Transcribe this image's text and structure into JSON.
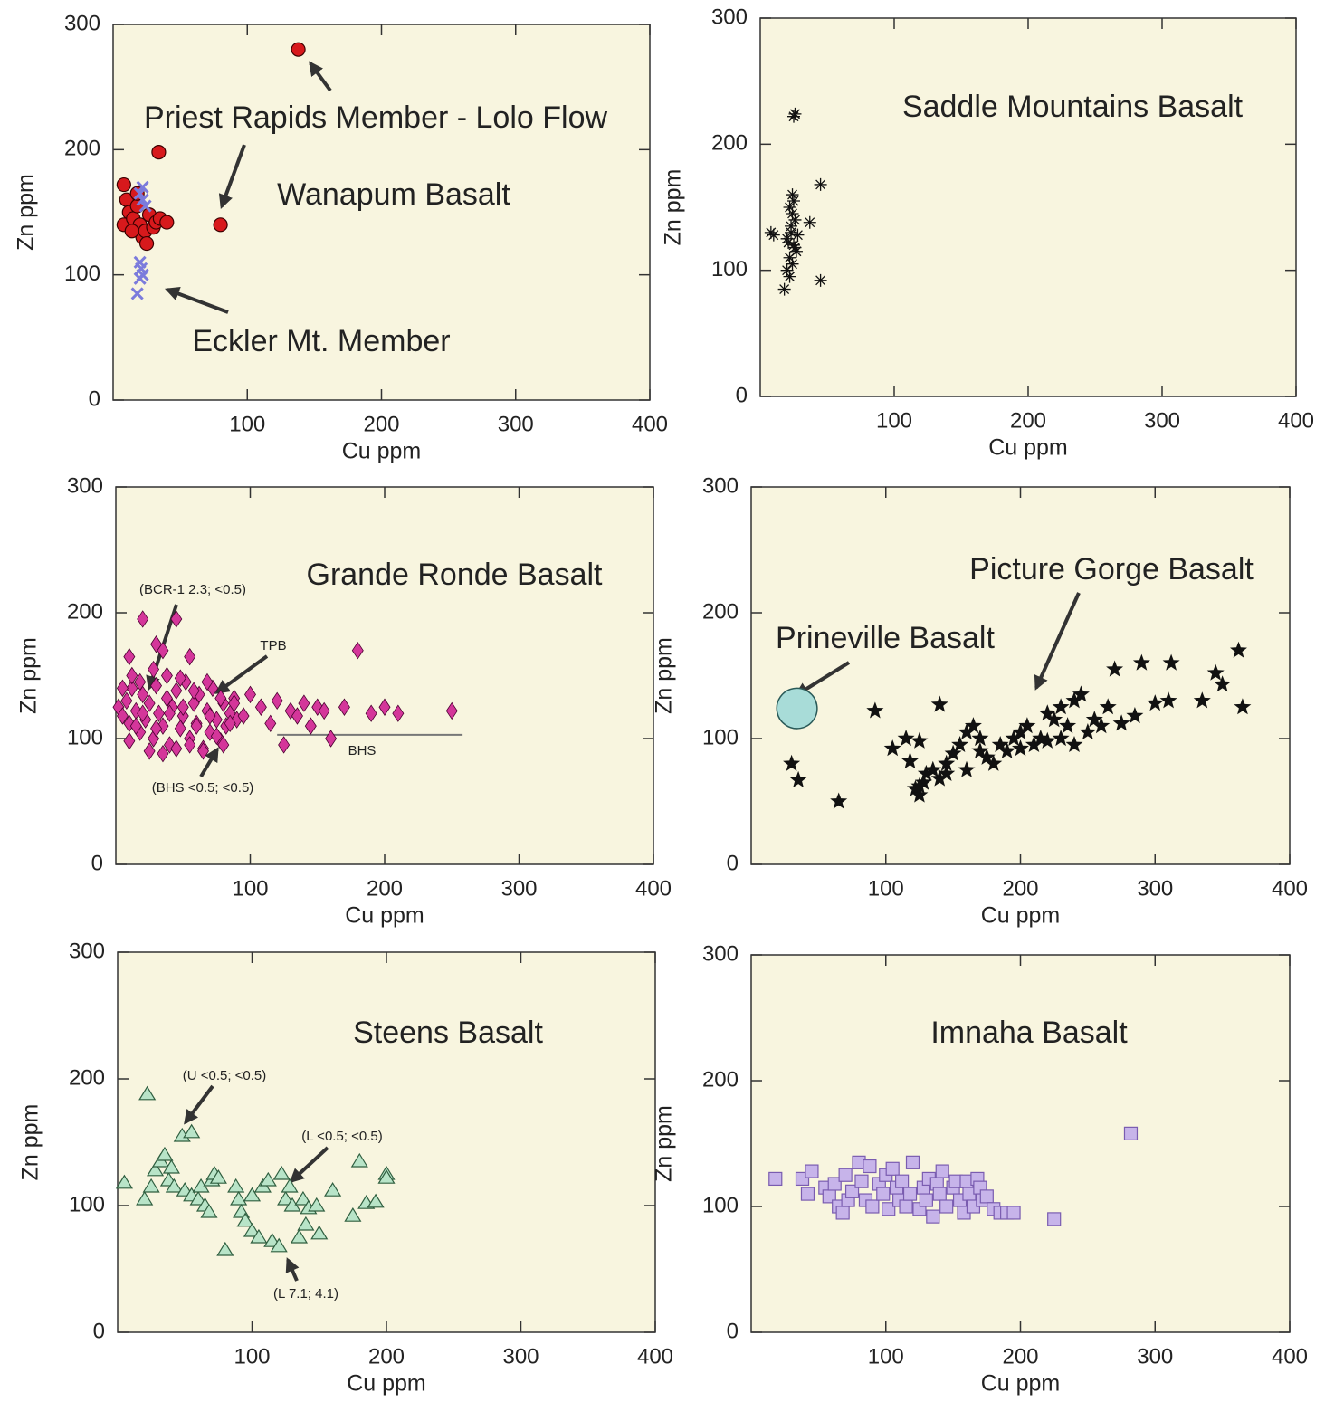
{
  "chart_data": [
    {
      "type": "scatter",
      "xlabel": "Cu ppm",
      "ylabel": "Zn ppm",
      "xlim": [
        0,
        400
      ],
      "ylim": [
        0,
        300
      ],
      "xticks": [
        100,
        200,
        300,
        400
      ],
      "yticks": [
        0,
        100,
        200,
        300
      ],
      "annotations": [
        "Priest Rapids Member - Lolo Flow",
        "Wanapum Basalt",
        "Eckler Mt. Member"
      ],
      "series": [
        {
          "marker": "circle",
          "color": "#d7191c",
          "x": [
            8,
            10,
            12,
            8,
            15,
            18,
            20,
            22,
            24,
            25,
            27,
            30,
            32,
            35,
            40,
            14,
            18,
            34,
            80,
            138
          ],
          "values": [
            172,
            160,
            150,
            140,
            145,
            155,
            140,
            130,
            135,
            125,
            148,
            138,
            142,
            145,
            142,
            135,
            165,
            198,
            140,
            280
          ]
        },
        {
          "marker": "x",
          "color": "#7b7bdc",
          "x": [
            20,
            22,
            24,
            22,
            20,
            21,
            22,
            20,
            18
          ],
          "values": [
            165,
            160,
            155,
            170,
            110,
            105,
            100,
            97,
            85
          ]
        }
      ]
    },
    {
      "type": "scatter",
      "title": "Saddle Mountains Basalt",
      "xlabel": "Cu ppm",
      "ylabel": "Zn ppm",
      "xlim": [
        0,
        400
      ],
      "ylim": [
        0,
        300
      ],
      "xticks": [
        100,
        200,
        300,
        400
      ],
      "yticks": [
        0,
        100,
        200,
        300
      ],
      "series": [
        {
          "marker": "asterisk",
          "color": "#111111",
          "x": [
            25,
            26,
            45,
            37,
            45,
            8,
            10,
            20,
            18,
            22,
            24,
            25,
            22,
            24,
            26,
            23,
            20,
            25,
            27,
            22,
            24,
            26,
            21,
            28,
            23
          ],
          "values": [
            222,
            224,
            168,
            138,
            92,
            130,
            128,
            100,
            85,
            95,
            160,
            155,
            150,
            145,
            140,
            130,
            125,
            120,
            115,
            110,
            105,
            118,
            122,
            128,
            135
          ]
        }
      ]
    },
    {
      "type": "scatter",
      "title": "Grande Ronde Basalt",
      "xlabel": "Cu ppm",
      "ylabel": "Zn ppm",
      "xlim": [
        0,
        400
      ],
      "ylim": [
        0,
        300
      ],
      "xticks": [
        100,
        200,
        300,
        400
      ],
      "yticks": [
        0,
        100,
        200,
        300
      ],
      "annotations": [
        "(BCR-1 2.3; <0.5)",
        "TPB",
        "(BHS <0.5; <0.5)",
        "BHS"
      ],
      "reference_line": {
        "x": [
          120,
          258
        ],
        "y": 103
      },
      "series": [
        {
          "marker": "diamond",
          "color": "#d4369a",
          "x": [
            2,
            5,
            8,
            10,
            12,
            15,
            18,
            20,
            22,
            25,
            28,
            30,
            32,
            35,
            38,
            40,
            42,
            45,
            48,
            50,
            52,
            55,
            58,
            60,
            62,
            65,
            68,
            70,
            72,
            75,
            78,
            80,
            82,
            85,
            88,
            90,
            5,
            10,
            15,
            20,
            25,
            30,
            35,
            40,
            45,
            50,
            55,
            60,
            65,
            70,
            75,
            80,
            85,
            12,
            18,
            28,
            38,
            48,
            58,
            68,
            78,
            88,
            20,
            45,
            55,
            30,
            35,
            10,
            95,
            100,
            108,
            115,
            120,
            130,
            140,
            150,
            160,
            170,
            180,
            190,
            200,
            210,
            250,
            125,
            135,
            145,
            155
          ],
          "values": [
            125,
            118,
            130,
            112,
            140,
            122,
            105,
            135,
            115,
            128,
            100,
            142,
            120,
            110,
            132,
            95,
            125,
            138,
            108,
            118,
            145,
            100,
            128,
            112,
            135,
            92,
            122,
            105,
            140,
            115,
            98,
            128,
            110,
            120,
            132,
            115,
            140,
            98,
            110,
            120,
            90,
            108,
            88,
            120,
            92,
            125,
            95,
            110,
            90,
            118,
            102,
            95,
            112,
            150,
            145,
            155,
            150,
            148,
            138,
            145,
            132,
            128,
            195,
            195,
            165,
            175,
            170,
            165,
            118,
            135,
            125,
            112,
            130,
            122,
            128,
            125,
            100,
            125,
            170,
            120,
            125,
            120,
            122,
            95,
            118,
            110,
            122
          ]
        }
      ]
    },
    {
      "type": "scatter",
      "xlabel": "Cu ppm",
      "ylabel": "Zn ppm",
      "xlim": [
        0,
        400
      ],
      "ylim": [
        0,
        300
      ],
      "xticks": [
        100,
        200,
        300,
        400
      ],
      "yticks": [
        0,
        100,
        200,
        300
      ],
      "annotations": [
        "Picture Gorge Basalt",
        "Prineville Basalt"
      ],
      "ellipse": {
        "cx": 34,
        "cy": 124,
        "rx": 15,
        "ry": 16,
        "color": "#a8dcd8"
      },
      "series": [
        {
          "marker": "star",
          "color": "#111111",
          "x": [
            30,
            35,
            65,
            92,
            105,
            115,
            118,
            125,
            140,
            122,
            125,
            128,
            130,
            135,
            140,
            145,
            150,
            155,
            160,
            165,
            170,
            175,
            180,
            190,
            195,
            200,
            205,
            210,
            215,
            220,
            225,
            230,
            235,
            240,
            245,
            250,
            255,
            260,
            265,
            270,
            275,
            285,
            290,
            300,
            310,
            312,
            335,
            345,
            350,
            362,
            365,
            160,
            185,
            200,
            220,
            230,
            240,
            170,
            145,
            125
          ],
          "values": [
            80,
            67,
            50,
            122,
            92,
            100,
            82,
            98,
            127,
            60,
            55,
            65,
            72,
            75,
            68,
            80,
            88,
            95,
            105,
            110,
            100,
            85,
            80,
            90,
            100,
            105,
            110,
            95,
            100,
            120,
            115,
            125,
            110,
            130,
            135,
            105,
            115,
            110,
            125,
            155,
            112,
            118,
            160,
            128,
            130,
            160,
            130,
            152,
            143,
            170,
            125,
            75,
            95,
            92,
            98,
            100,
            95,
            90,
            72,
            62
          ]
        }
      ]
    },
    {
      "type": "scatter",
      "title": "Steens Basalt",
      "xlabel": "Cu ppm",
      "ylabel": "Zn ppm",
      "xlim": [
        0,
        400
      ],
      "ylim": [
        0,
        300
      ],
      "xticks": [
        100,
        200,
        300,
        400
      ],
      "yticks": [
        0,
        100,
        200,
        300
      ],
      "annotations": [
        "(U <0.5; <0.5)",
        "(L <0.5; <0.5)",
        "(L 7.1; 4.1)"
      ],
      "series": [
        {
          "marker": "triangle",
          "color": "#b8e4c8",
          "x": [
            5,
            20,
            22,
            25,
            28,
            32,
            35,
            38,
            40,
            42,
            48,
            50,
            55,
            55,
            60,
            62,
            65,
            68,
            70,
            72,
            75,
            80,
            88,
            90,
            92,
            95,
            100,
            100,
            105,
            108,
            112,
            115,
            120,
            122,
            125,
            128,
            130,
            135,
            138,
            140,
            142,
            148,
            150,
            160,
            175,
            180,
            185,
            192,
            200,
            200
          ],
          "values": [
            118,
            105,
            188,
            115,
            128,
            135,
            140,
            120,
            130,
            115,
            155,
            112,
            158,
            108,
            105,
            115,
            100,
            95,
            120,
            125,
            122,
            65,
            115,
            105,
            95,
            88,
            80,
            108,
            75,
            115,
            120,
            72,
            68,
            125,
            105,
            115,
            100,
            75,
            105,
            85,
            98,
            100,
            78,
            112,
            92,
            135,
            102,
            103,
            125,
            122
          ]
        }
      ]
    },
    {
      "type": "scatter",
      "title": "Imnaha Basalt",
      "xlabel": "Cu ppm",
      "ylabel": "Zn ppm",
      "xlim": [
        0,
        400
      ],
      "ylim": [
        0,
        300
      ],
      "xticks": [
        100,
        200,
        300,
        400
      ],
      "yticks": [
        0,
        100,
        200,
        300
      ],
      "series": [
        {
          "marker": "square",
          "color": "#c7b4ea",
          "x": [
            18,
            38,
            42,
            45,
            55,
            58,
            62,
            65,
            68,
            70,
            72,
            75,
            80,
            82,
            85,
            88,
            90,
            95,
            98,
            100,
            102,
            105,
            108,
            110,
            112,
            115,
            118,
            120,
            125,
            128,
            130,
            132,
            135,
            138,
            140,
            142,
            145,
            150,
            152,
            155,
            158,
            160,
            162,
            165,
            168,
            170,
            172,
            175,
            180,
            185,
            190,
            195,
            225,
            282
          ],
          "values": [
            122,
            122,
            110,
            128,
            115,
            108,
            118,
            100,
            95,
            125,
            105,
            112,
            135,
            120,
            105,
            132,
            100,
            118,
            110,
            125,
            98,
            130,
            115,
            105,
            120,
            100,
            110,
            135,
            98,
            115,
            105,
            122,
            92,
            118,
            110,
            128,
            100,
            115,
            120,
            105,
            95,
            120,
            110,
            100,
            122,
            115,
            105,
            108,
            98,
            95,
            95,
            95,
            90,
            158
          ]
        }
      ]
    }
  ]
}
